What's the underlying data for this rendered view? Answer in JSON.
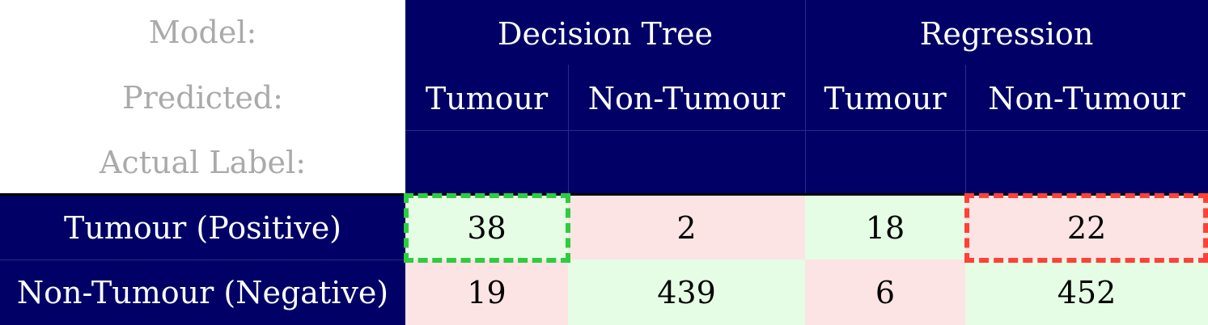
{
  "chart_data": {
    "type": "table",
    "row_header_labels": [
      "Model:",
      "Predicted:",
      "Actual Label:"
    ],
    "models": [
      "Decision Tree",
      "Regression"
    ],
    "predicted": [
      "Tumour",
      "Non-Tumour",
      "Tumour",
      "Non-Tumour"
    ],
    "rows": [
      {
        "label": "Tumour (Positive)",
        "values": [
          "38",
          "2",
          "18",
          "22"
        ]
      },
      {
        "label": "Non-Tumour (Negative)",
        "values": [
          "19",
          "439",
          "6",
          "452"
        ]
      }
    ],
    "highlights": [
      {
        "cell": "Decision Tree / Tumour (Positive) / Tumour",
        "color": "#2ecc40",
        "style": "dashed"
      },
      {
        "cell": "Regression / Tumour (Positive) / Non-Tumour",
        "color": "#ff4136",
        "style": "dashed"
      }
    ],
    "colors": {
      "header": "#000066",
      "correct": "#e5fde5",
      "incorrect": "#fde4e4"
    }
  }
}
